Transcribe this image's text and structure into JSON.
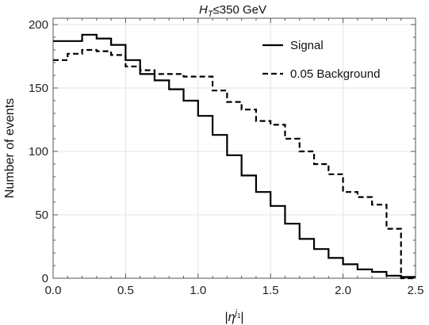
{
  "chart_data": {
    "type": "line",
    "style": "step-histogram",
    "title": {
      "lead": "H",
      "sub": "T",
      "tail": "≤350 GeV"
    },
    "xlabel": {
      "open": "|",
      "var": "η",
      "sup": "j",
      "supsub": "1",
      "close": "|"
    },
    "ylabel": "Number of events",
    "xlim": [
      0.0,
      2.5
    ],
    "ylim": [
      0,
      205
    ],
    "xticks": [
      0.0,
      0.5,
      1.0,
      1.5,
      2.0,
      2.5
    ],
    "xtick_labels": [
      "0.0",
      "0.5",
      "1.0",
      "1.5",
      "2.0",
      "2.5"
    ],
    "yticks": [
      0,
      50,
      100,
      150,
      200
    ],
    "ytick_labels": [
      "0",
      "50",
      "100",
      "150",
      "200"
    ],
    "grid": true,
    "legend_position": "top-right",
    "bin_edges": [
      0.0,
      0.1,
      0.2,
      0.3,
      0.4,
      0.5,
      0.6,
      0.7,
      0.8,
      0.9,
      1.0,
      1.1,
      1.2,
      1.3,
      1.4,
      1.5,
      1.6,
      1.7,
      1.8,
      1.9,
      2.0,
      2.1,
      2.2,
      2.3,
      2.4,
      2.5
    ],
    "series": [
      {
        "name": "Signal",
        "dash": "solid",
        "color": "#000000",
        "values": [
          187,
          187,
          192,
          189,
          184,
          172,
          161,
          156,
          149,
          140,
          128,
          113,
          97,
          81,
          68,
          57,
          43,
          31,
          23,
          16,
          11,
          7,
          5,
          2,
          1
        ]
      },
      {
        "name": "0.05 Background",
        "dash": "dashed",
        "color": "#000000",
        "values": [
          172,
          177,
          180,
          179,
          176,
          167,
          164,
          161,
          161,
          159,
          159,
          148,
          139,
          133,
          124,
          121,
          110,
          100,
          90,
          82,
          68,
          64,
          58,
          39,
          0
        ]
      }
    ]
  }
}
